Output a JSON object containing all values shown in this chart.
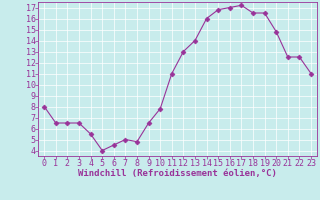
{
  "x": [
    0,
    1,
    2,
    3,
    4,
    5,
    6,
    7,
    8,
    9,
    10,
    11,
    12,
    13,
    14,
    15,
    16,
    17,
    18,
    19,
    20,
    21,
    22,
    23
  ],
  "y": [
    8.0,
    6.5,
    6.5,
    6.5,
    5.5,
    4.0,
    4.5,
    5.0,
    4.8,
    6.5,
    7.8,
    11.0,
    13.0,
    14.0,
    16.0,
    16.8,
    17.0,
    17.2,
    16.5,
    16.5,
    14.8,
    12.5,
    12.5,
    11.0
  ],
  "line_color": "#993399",
  "marker": "D",
  "marker_size": 2.5,
  "bg_color": "#c8ecec",
  "grid_color": "#ffffff",
  "xlabel": "Windchill (Refroidissement éolien,°C)",
  "ylim": [
    3.5,
    17.5
  ],
  "xlim": [
    -0.5,
    23.5
  ],
  "yticks": [
    4,
    5,
    6,
    7,
    8,
    9,
    10,
    11,
    12,
    13,
    14,
    15,
    16,
    17
  ],
  "xticks": [
    0,
    1,
    2,
    3,
    4,
    5,
    6,
    7,
    8,
    9,
    10,
    11,
    12,
    13,
    14,
    15,
    16,
    17,
    18,
    19,
    20,
    21,
    22,
    23
  ],
  "tick_color": "#993399",
  "label_color": "#993399",
  "label_fontsize": 6.5,
  "tick_fontsize": 6
}
